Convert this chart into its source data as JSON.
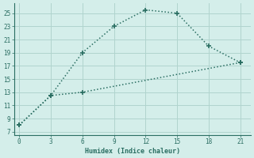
{
  "xlabel": "Humidex (Indice chaleur)",
  "line1_x": [
    0,
    3,
    6,
    9,
    12,
    15,
    18,
    21
  ],
  "line1_y": [
    8,
    12.5,
    19,
    23,
    25.5,
    25,
    20,
    17.5
  ],
  "line2_x": [
    0,
    3,
    6,
    21
  ],
  "line2_y": [
    8,
    12.5,
    13,
    17.5
  ],
  "line_color": "#2a6e62",
  "bg_color": "#d4eeea",
  "grid_color": "#b0d4ce",
  "xlim": [
    -0.5,
    22
  ],
  "ylim": [
    6.5,
    26.5
  ],
  "xticks": [
    0,
    3,
    6,
    9,
    12,
    15,
    18,
    21
  ],
  "yticks": [
    7,
    9,
    11,
    13,
    15,
    17,
    19,
    21,
    23,
    25
  ]
}
